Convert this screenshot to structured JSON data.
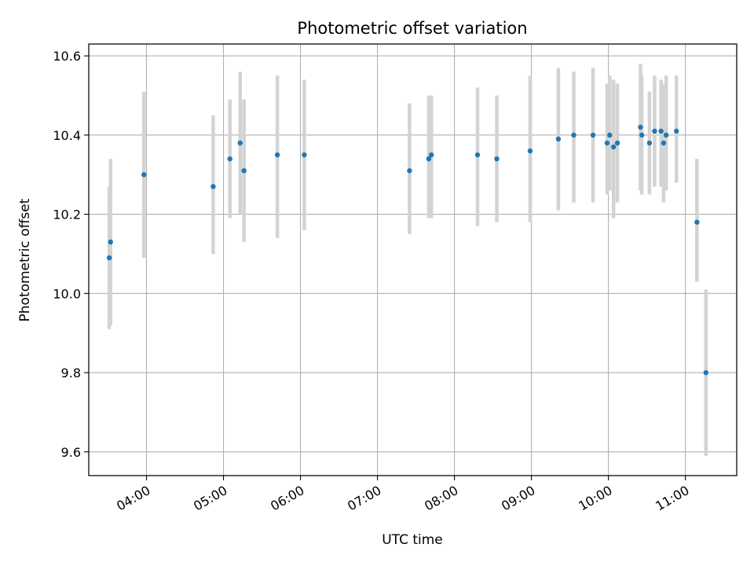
{
  "chart_data": {
    "type": "scatter",
    "title": "Photometric offset variation",
    "xlabel": "UTC time",
    "ylabel": "Photometric offset",
    "x_unit": "hours UTC",
    "xlim": [
      "03:15",
      "11:40"
    ],
    "ylim": [
      9.54,
      10.63
    ],
    "grid": true,
    "x_ticks": [
      {
        "value": "04:00",
        "label": "04:00"
      },
      {
        "value": "05:00",
        "label": "05:00"
      },
      {
        "value": "06:00",
        "label": "06:00"
      },
      {
        "value": "07:00",
        "label": "07:00"
      },
      {
        "value": "08:00",
        "label": "08:00"
      },
      {
        "value": "09:00",
        "label": "09:00"
      },
      {
        "value": "10:00",
        "label": "10:00"
      },
      {
        "value": "11:00",
        "label": "11:00"
      }
    ],
    "y_ticks": [
      {
        "value": 9.6,
        "label": "9.6"
      },
      {
        "value": 9.8,
        "label": "9.8"
      },
      {
        "value": 10.0,
        "label": "10.0"
      },
      {
        "value": 10.2,
        "label": "10.2"
      },
      {
        "value": 10.4,
        "label": "10.4"
      },
      {
        "value": 10.6,
        "label": "10.6"
      }
    ],
    "colors": {
      "point": "#1f77b4",
      "errorbar": "#d3d3d3",
      "grid": "#b0b0b0"
    },
    "points": [
      {
        "x": "03:31",
        "y": 10.09,
        "ylow": 9.91,
        "yhigh": 10.27
      },
      {
        "x": "03:32",
        "y": 10.13,
        "ylow": 9.92,
        "yhigh": 10.34
      },
      {
        "x": "03:58",
        "y": 10.3,
        "ylow": 10.09,
        "yhigh": 10.51
      },
      {
        "x": "04:52",
        "y": 10.27,
        "ylow": 10.1,
        "yhigh": 10.45
      },
      {
        "x": "05:05",
        "y": 10.34,
        "ylow": 10.19,
        "yhigh": 10.49
      },
      {
        "x": "05:13",
        "y": 10.38,
        "ylow": 10.2,
        "yhigh": 10.56
      },
      {
        "x": "05:16",
        "y": 10.31,
        "ylow": 10.13,
        "yhigh": 10.49
      },
      {
        "x": "05:42",
        "y": 10.35,
        "ylow": 10.14,
        "yhigh": 10.55
      },
      {
        "x": "06:03",
        "y": 10.35,
        "ylow": 10.16,
        "yhigh": 10.54
      },
      {
        "x": "07:25",
        "y": 10.31,
        "ylow": 10.15,
        "yhigh": 10.48
      },
      {
        "x": "07:40",
        "y": 10.34,
        "ylow": 10.19,
        "yhigh": 10.5
      },
      {
        "x": "07:42",
        "y": 10.35,
        "ylow": 10.19,
        "yhigh": 10.5
      },
      {
        "x": "08:18",
        "y": 10.35,
        "ylow": 10.17,
        "yhigh": 10.52
      },
      {
        "x": "08:33",
        "y": 10.34,
        "ylow": 10.18,
        "yhigh": 10.5
      },
      {
        "x": "08:59",
        "y": 10.36,
        "ylow": 10.18,
        "yhigh": 10.55
      },
      {
        "x": "09:21",
        "y": 10.39,
        "ylow": 10.21,
        "yhigh": 10.57
      },
      {
        "x": "09:33",
        "y": 10.4,
        "ylow": 10.23,
        "yhigh": 10.56
      },
      {
        "x": "09:48",
        "y": 10.4,
        "ylow": 10.23,
        "yhigh": 10.57
      },
      {
        "x": "09:59",
        "y": 10.38,
        "ylow": 10.25,
        "yhigh": 10.53
      },
      {
        "x": "10:01",
        "y": 10.4,
        "ylow": 10.26,
        "yhigh": 10.55
      },
      {
        "x": "10:04",
        "y": 10.37,
        "ylow": 10.19,
        "yhigh": 10.54
      },
      {
        "x": "10:07",
        "y": 10.38,
        "ylow": 10.23,
        "yhigh": 10.53
      },
      {
        "x": "10:25",
        "y": 10.42,
        "ylow": 10.26,
        "yhigh": 10.58
      },
      {
        "x": "10:26",
        "y": 10.4,
        "ylow": 10.25,
        "yhigh": 10.55
      },
      {
        "x": "10:32",
        "y": 10.38,
        "ylow": 10.25,
        "yhigh": 10.51
      },
      {
        "x": "10:36",
        "y": 10.41,
        "ylow": 10.27,
        "yhigh": 10.55
      },
      {
        "x": "10:41",
        "y": 10.41,
        "ylow": 10.27,
        "yhigh": 10.54
      },
      {
        "x": "10:43",
        "y": 10.38,
        "ylow": 10.23,
        "yhigh": 10.53
      },
      {
        "x": "10:45",
        "y": 10.4,
        "ylow": 10.26,
        "yhigh": 10.55
      },
      {
        "x": "10:53",
        "y": 10.41,
        "ylow": 10.28,
        "yhigh": 10.55
      },
      {
        "x": "11:09",
        "y": 10.18,
        "ylow": 10.03,
        "yhigh": 10.34
      },
      {
        "x": "11:16",
        "y": 9.8,
        "ylow": 9.59,
        "yhigh": 10.01
      }
    ]
  }
}
